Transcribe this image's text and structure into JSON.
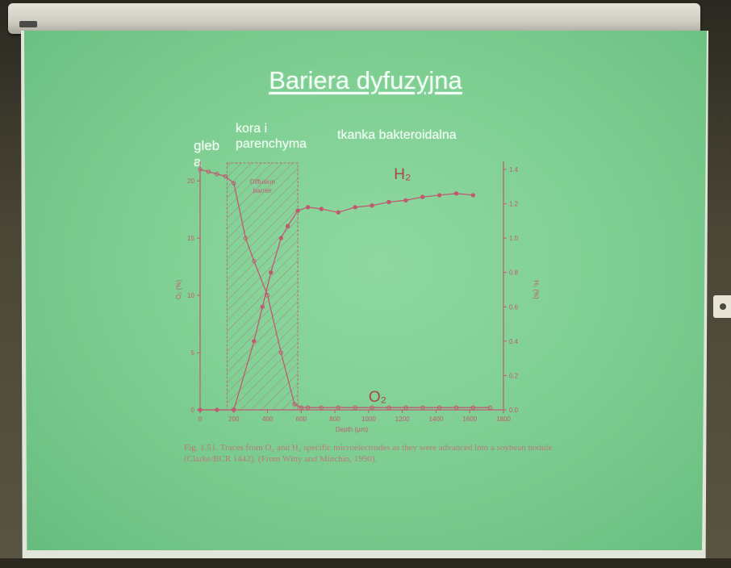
{
  "slide": {
    "title": "Bariera dyfuzyjna",
    "zone_labels": {
      "soil": "gleb a",
      "cortex": "kora i parenchyma",
      "bacteroid": "tkanka bakteroidalna"
    },
    "caption": "Fig. 1.51. Traces from O₂ and H₂ specific microelectrodes as they were advanced into a soybean nodule (Clarke/BCR 1442). (From Witty and Minchin, 1990)."
  },
  "chart_data": {
    "type": "line",
    "title": "",
    "xlabel": "Depth (μm)",
    "ylabel": "O₂ (%)",
    "y2label": "H₂ (%)",
    "x_ticks": [
      "0",
      "200",
      "400",
      "600",
      "800",
      "1000",
      "1200",
      "1400",
      "1600",
      "1800"
    ],
    "y_ticks": [
      "0",
      "5",
      "10",
      "15",
      "20"
    ],
    "y2_ticks": [
      "0.0",
      "0.2",
      "0.4",
      "0.6",
      "0.8",
      "1.0",
      "1.2",
      "1.4"
    ],
    "xlim": [
      0,
      1800
    ],
    "ylim": [
      0,
      21
    ],
    "y2lim": [
      0,
      1.4
    ],
    "diffusion_barrier": {
      "label": "Diffusion barrier",
      "x_start": 160,
      "x_end": 580
    },
    "series": [
      {
        "name": "H₂",
        "axis": "right",
        "color": "#c05a72",
        "x": [
          0,
          100,
          200,
          320,
          370,
          420,
          480,
          520,
          580,
          640,
          720,
          820,
          920,
          1020,
          1120,
          1220,
          1320,
          1420,
          1520,
          1620
        ],
        "values": [
          0.0,
          0.0,
          0.0,
          0.4,
          0.6,
          0.8,
          1.0,
          1.07,
          1.16,
          1.18,
          1.17,
          1.15,
          1.18,
          1.19,
          1.21,
          1.22,
          1.24,
          1.25,
          1.26,
          1.25
        ]
      },
      {
        "name": "O₂",
        "axis": "left",
        "color": "#c05a72",
        "x": [
          0,
          50,
          100,
          150,
          200,
          270,
          320,
          400,
          480,
          560,
          600,
          640,
          720,
          820,
          920,
          1020,
          1120,
          1220,
          1320,
          1420,
          1520,
          1620,
          1720
        ],
        "values": [
          21.0,
          20.8,
          20.6,
          20.4,
          19.8,
          15.0,
          13.0,
          10.0,
          5.0,
          0.5,
          0.2,
          0.2,
          0.2,
          0.2,
          0.2,
          0.2,
          0.2,
          0.2,
          0.2,
          0.2,
          0.2,
          0.2,
          0.2
        ]
      }
    ]
  }
}
